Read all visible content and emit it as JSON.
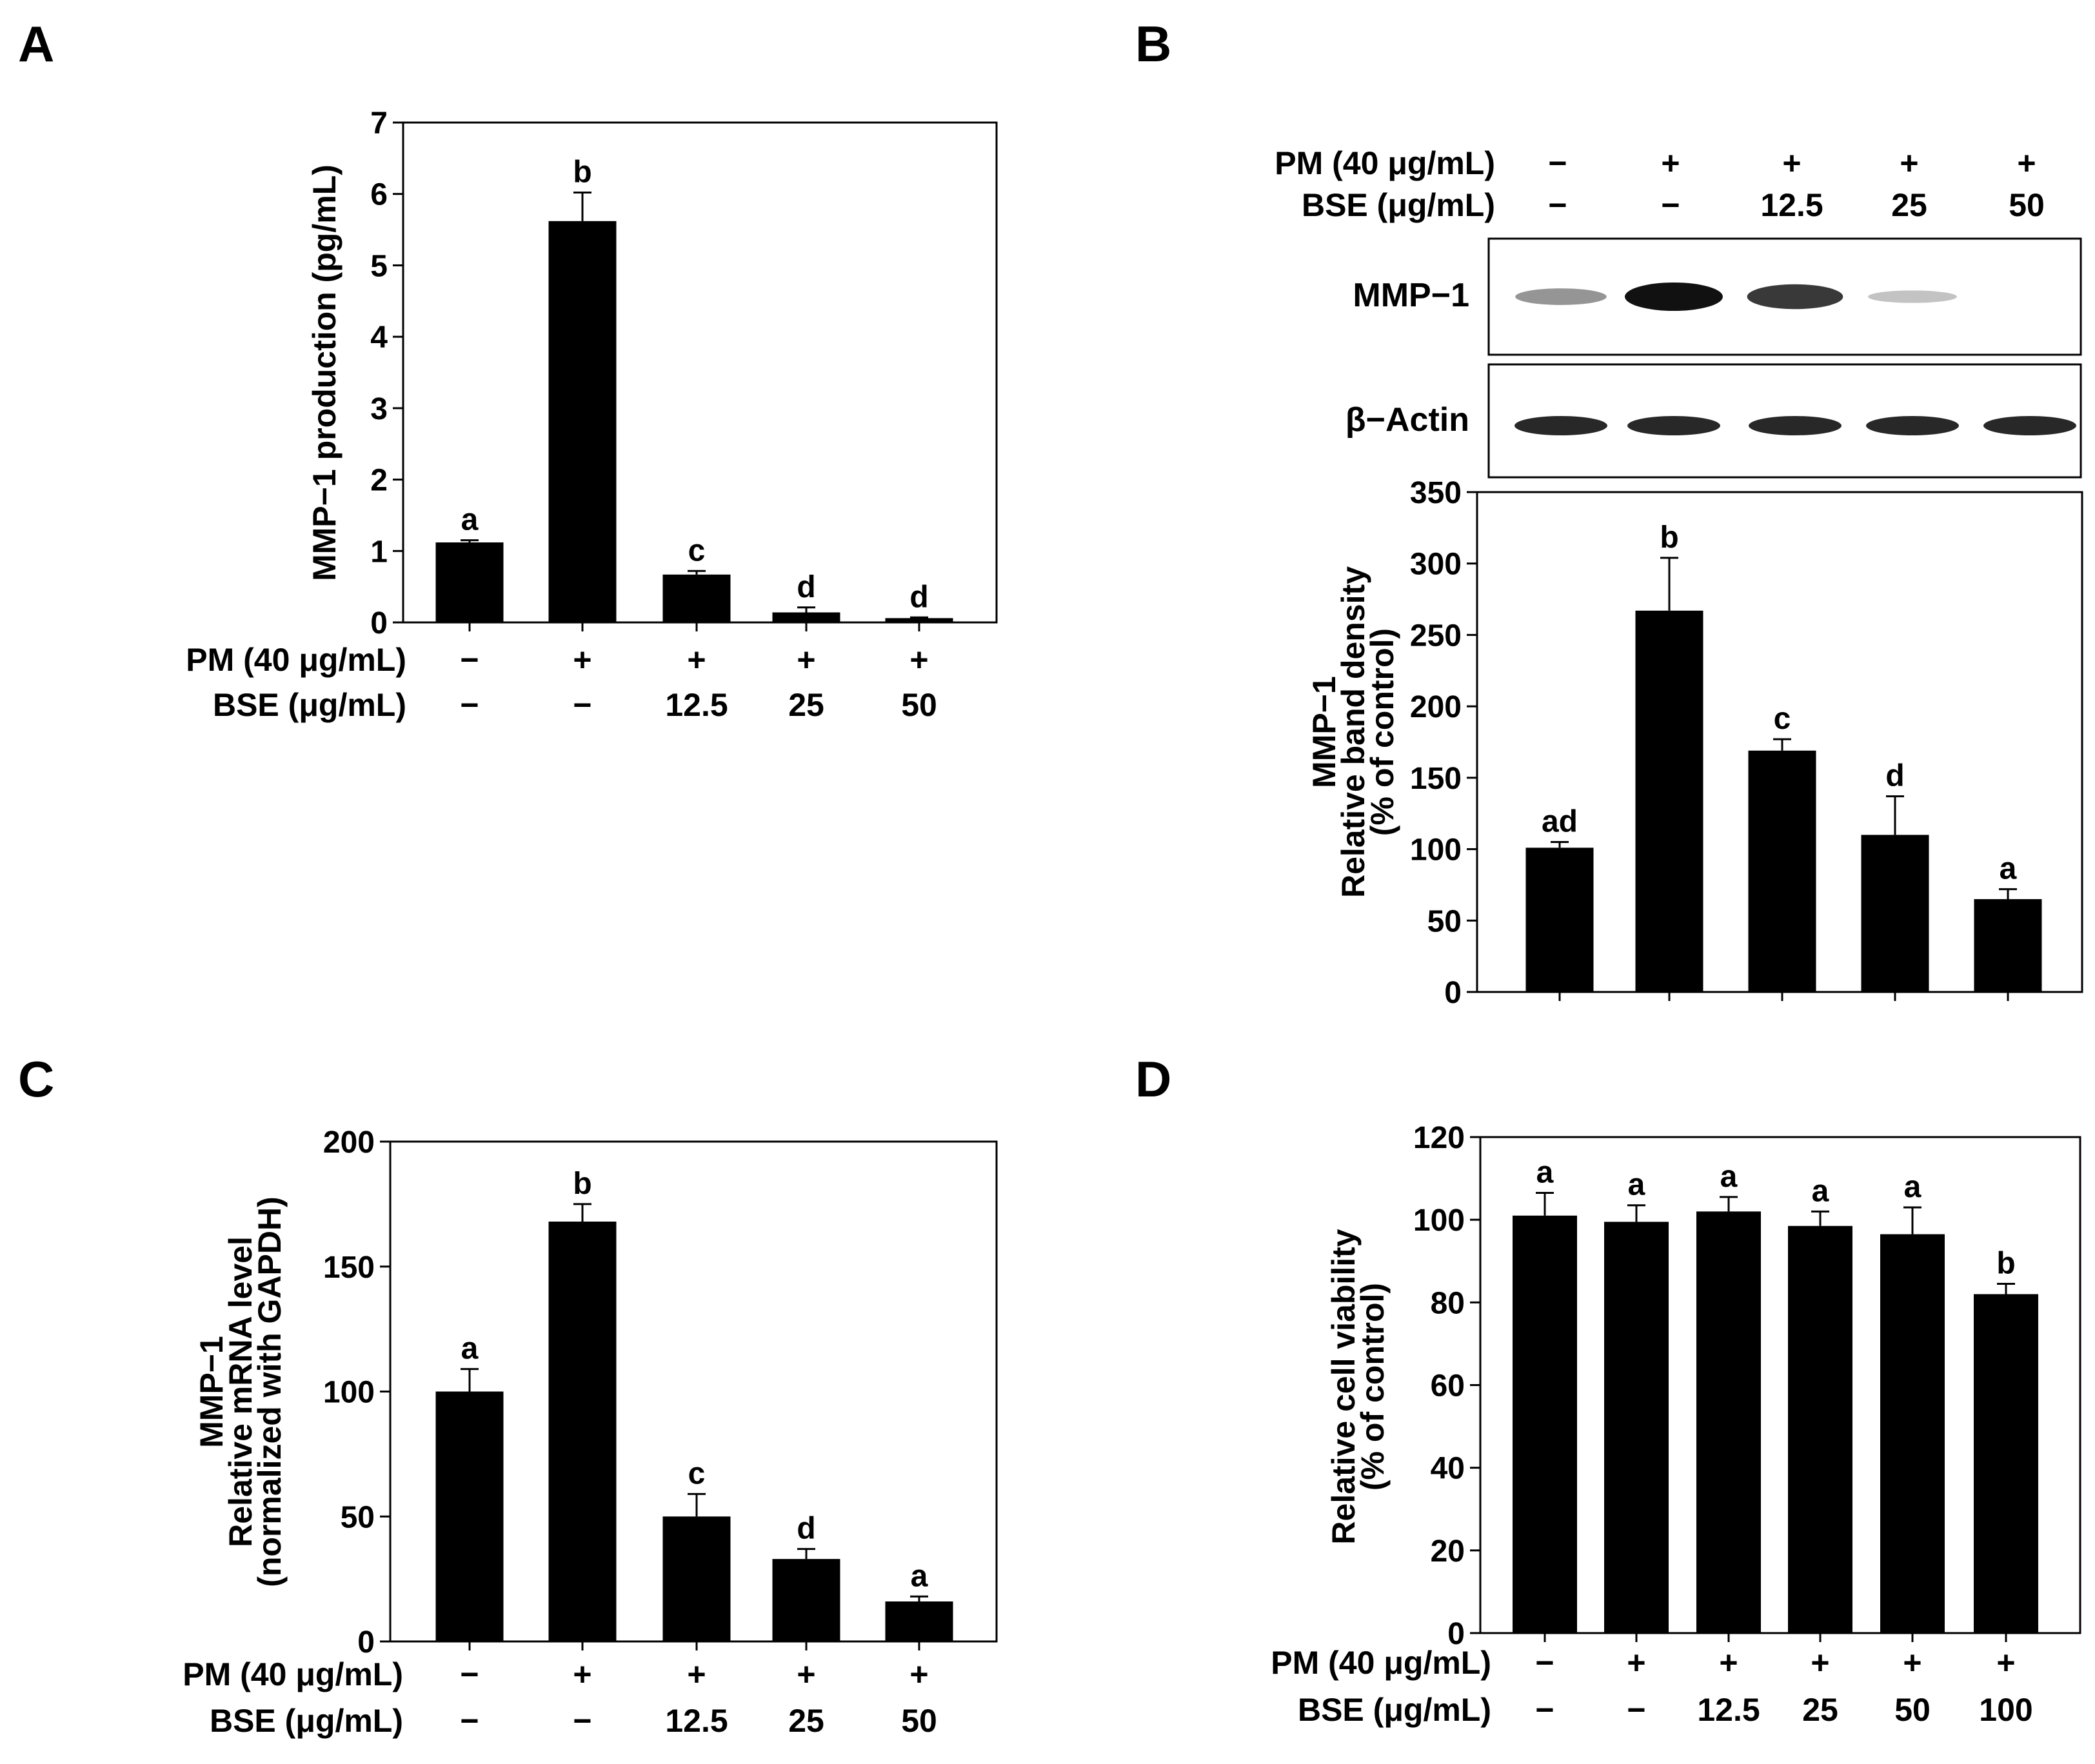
{
  "panels": {
    "A": {
      "letter": "A"
    },
    "B": {
      "letter": "B"
    },
    "C": {
      "letter": "C"
    },
    "D": {
      "letter": "D"
    }
  },
  "treatments": {
    "pm_label": "PM (40 μg/mL)",
    "bse_label": "BSE (μg/mL)",
    "pm_5": [
      "−",
      "+",
      "+",
      "+",
      "+"
    ],
    "bse_5": [
      "−",
      "−",
      "12.5",
      "25",
      "50"
    ],
    "pm_6": [
      "−",
      "+",
      "+",
      "+",
      "+",
      "+"
    ],
    "bse_6": [
      "−",
      "−",
      "12.5",
      "25",
      "50",
      "100"
    ]
  },
  "blot": {
    "mmp1_label": "MMP−1",
    "actin_label": "β−Actin",
    "mmp1_intensity": [
      0.35,
      1.0,
      0.8,
      0.12,
      0.0
    ],
    "actin_intensity": [
      0.9,
      0.9,
      0.9,
      0.9,
      0.9
    ],
    "band_color": "#111111"
  },
  "chart_data": [
    {
      "id": "A",
      "type": "bar",
      "ylabel_lines": [
        "MMP−1 production (pg/mL)"
      ],
      "ylim": [
        0,
        7
      ],
      "yticks": [
        0,
        1,
        2,
        3,
        4,
        5,
        6,
        7
      ],
      "values": [
        1.12,
        5.62,
        0.67,
        0.14,
        0.06
      ],
      "errors": [
        0.03,
        0.4,
        0.05,
        0.07,
        0.01
      ],
      "sig_labels": [
        "a",
        "b",
        "c",
        "d",
        "d"
      ],
      "bar_color": "#000000"
    },
    {
      "id": "B",
      "type": "bar",
      "ylabel_lines": [
        "MMP−1",
        "Relative band density",
        "(% of control)"
      ],
      "ylim": [
        0,
        350
      ],
      "yticks": [
        0,
        50,
        100,
        150,
        200,
        250,
        300,
        350
      ],
      "values": [
        101,
        267,
        169,
        110,
        65
      ],
      "errors": [
        4,
        37,
        8,
        27,
        7
      ],
      "sig_labels": [
        "ad",
        "b",
        "c",
        "d",
        "a"
      ],
      "bar_color": "#000000"
    },
    {
      "id": "C",
      "type": "bar",
      "ylabel_lines": [
        "MMP−1",
        "Relative mRNA level",
        "(normalized with GAPDH)"
      ],
      "ylim": [
        0,
        200
      ],
      "yticks": [
        0,
        50,
        100,
        150,
        200
      ],
      "values": [
        100,
        168,
        50,
        33,
        16
      ],
      "errors": [
        9,
        7,
        9,
        4,
        2
      ],
      "sig_labels": [
        "a",
        "b",
        "c",
        "d",
        "a"
      ],
      "bar_color": "#000000"
    },
    {
      "id": "D",
      "type": "bar",
      "ylabel_lines": [
        "Relative cell viability",
        "(% of control)"
      ],
      "ylim": [
        0,
        120
      ],
      "yticks": [
        0,
        20,
        40,
        60,
        80,
        100,
        120
      ],
      "values": [
        101,
        99.5,
        102,
        98.5,
        96.5,
        82
      ],
      "errors": [
        5.5,
        4,
        3.5,
        3.5,
        6.5,
        2.5
      ],
      "sig_labels": [
        "a",
        "a",
        "a",
        "a",
        "a",
        "b"
      ],
      "bar_color": "#000000"
    }
  ]
}
